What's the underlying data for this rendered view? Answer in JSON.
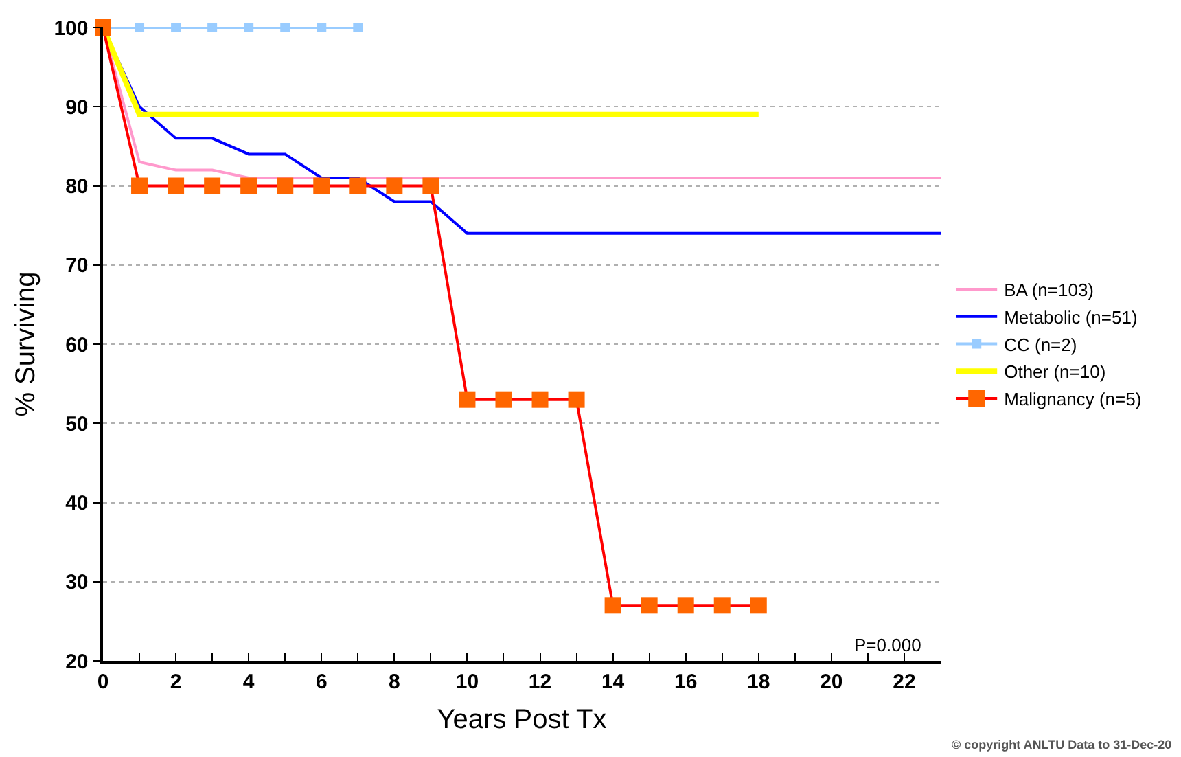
{
  "chart_data": {
    "type": "line",
    "xlabel": "Years Post Tx",
    "ylabel": "% Surviving",
    "xlim": [
      0,
      23
    ],
    "ylim": [
      20,
      100
    ],
    "xticks": [
      0,
      {
        "value": 1,
        "label": null
      },
      2,
      {
        "value": 3,
        "label": null
      },
      4,
      {
        "value": 5,
        "label": null
      },
      6,
      {
        "value": 7,
        "label": null
      },
      8,
      {
        "value": 9,
        "label": null
      },
      10,
      {
        "value": 11,
        "label": null
      },
      12,
      {
        "value": 13,
        "label": null
      },
      14,
      {
        "value": 15,
        "label": null
      },
      16,
      {
        "value": 17,
        "label": null
      },
      18,
      {
        "value": 19,
        "label": null
      },
      20,
      {
        "value": 21,
        "label": null
      },
      22
    ],
    "yticks": [
      20,
      30,
      40,
      50,
      60,
      70,
      80,
      90,
      100
    ],
    "grid": "y",
    "legend": "right",
    "line_style": "solid",
    "series": [
      {
        "name": "BA (n=103)",
        "color": "#ff99cc",
        "marker": "none",
        "x": [
          0,
          1,
          2,
          3,
          4,
          23
        ],
        "values": [
          100,
          83,
          82,
          82,
          81,
          81
        ]
      },
      {
        "name": "Metabolic (n=51)",
        "color": "#0000ff",
        "marker": "none",
        "x": [
          0,
          1,
          2,
          3,
          4,
          5,
          6,
          7,
          8,
          9,
          10,
          23
        ],
        "values": [
          100,
          90,
          86,
          86,
          84,
          84,
          81,
          81,
          78,
          78,
          74,
          74
        ]
      },
      {
        "name": "CC (n=2)",
        "color": "#99ccff",
        "marker": "square",
        "x": [
          0,
          1,
          2,
          3,
          4,
          5,
          6,
          7
        ],
        "values": [
          100,
          100,
          100,
          100,
          100,
          100,
          100,
          100
        ]
      },
      {
        "name": "Other (n=10)",
        "color": "#ffff00",
        "marker": "none",
        "x": [
          0,
          1,
          18
        ],
        "values": [
          100,
          89,
          89
        ]
      },
      {
        "name": "Malignancy (n=5)",
        "color": "#ff0000",
        "marker": "square",
        "x": [
          0,
          1,
          2,
          3,
          4,
          5,
          6,
          7,
          8,
          9,
          10,
          11,
          12,
          13,
          14,
          15,
          16,
          17,
          18
        ],
        "values": [
          100,
          80,
          80,
          80,
          80,
          80,
          80,
          80,
          80,
          80,
          53,
          53,
          53,
          53,
          27,
          27,
          27,
          27,
          27
        ]
      }
    ],
    "annotations": [
      "P=0.000",
      "© copyright ANLTU Data to 31-Dec-20"
    ]
  }
}
